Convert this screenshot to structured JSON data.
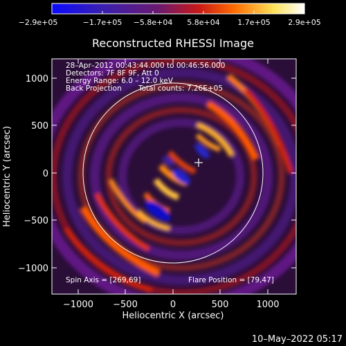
{
  "colorbar": {
    "tick_labels": [
      "−2.9e+05",
      "−1.7e+05",
      "−5.8e+04",
      "5.8e+04",
      "1.7e+05",
      "2.9e+05"
    ],
    "colors": [
      "#0b0bff",
      "#3a1fb0",
      "#6a1a70",
      "#c81818",
      "#ff6a00",
      "#ffe35a",
      "#ffffff"
    ]
  },
  "plot": {
    "title": "Reconstructed RHESSI Image",
    "xlabel": "Heliocentric X (arcsec)",
    "ylabel": "Heliocentric Y (arcsec)",
    "xlim": [
      -1300,
      1300
    ],
    "ylim": [
      -1250,
      1250
    ],
    "x_ticks": [
      "−1000",
      "−500",
      "0",
      "500",
      "1000"
    ],
    "y_ticks": [
      "1000",
      "500",
      "0",
      "−500",
      "−1000"
    ],
    "solar_limb_radius_arcsec": 950,
    "flare_marker": [
      79,
      47
    ]
  },
  "annotations": {
    "time_range": "28–Apr–2012 00:43:44.000 to 00:46:56.000",
    "detectors": "Detectors: 7F 8F 9F, Att 0",
    "energy_range": "Energy Range: 6.0 – 12.0 keV",
    "method": "Back Projection",
    "total_counts": "Total counts: 7.26E+05",
    "spin_axis": "Spin Axis = [269,69]",
    "flare_position": "Flare Position = [79,47]"
  },
  "footer": {
    "timestamp": "10–May–2022 05:17"
  }
}
